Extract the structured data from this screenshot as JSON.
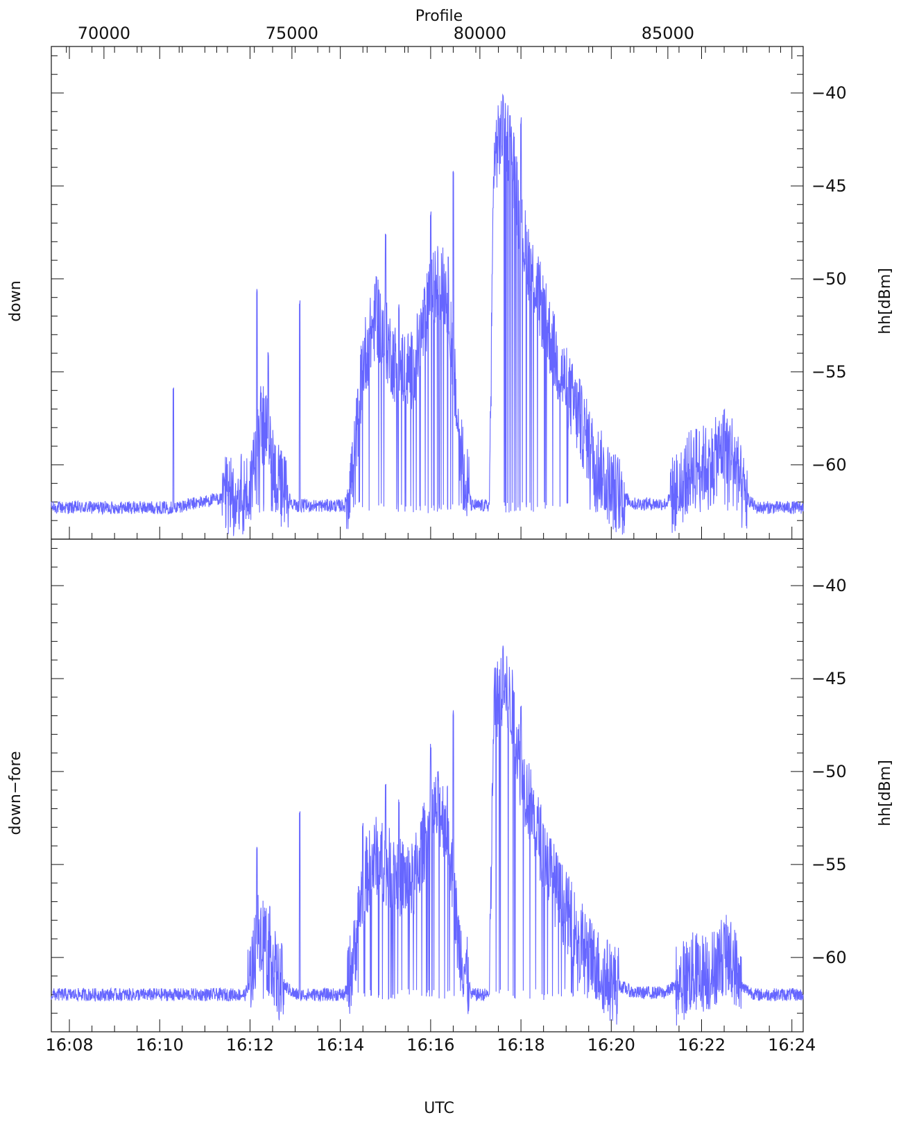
{
  "chart_data": {
    "type": "line",
    "top_axis": {
      "label": "Profile",
      "ticks": [
        "70000",
        "75000",
        "80000",
        "85000"
      ],
      "values": [
        70000,
        75000,
        80000,
        85000
      ],
      "range": [
        68600,
        88600
      ]
    },
    "x_axis": {
      "label": "UTC",
      "unit": "minutes since 16:00",
      "range": [
        7.6,
        24.25
      ],
      "ticks": [
        "16:08",
        "16:10",
        "16:12",
        "16:14",
        "16:16",
        "16:18",
        "16:20",
        "16:22",
        "16:24"
      ],
      "tick_values": [
        8,
        10,
        12,
        14,
        16,
        18,
        20,
        22,
        24
      ]
    },
    "line_color": "#6666ff",
    "panels": [
      {
        "name": "down",
        "y_label": "hh[dBm]",
        "ylim": [
          -64,
          -37.5
        ],
        "yticks": [
          -40,
          -45,
          -50,
          -55,
          -60
        ],
        "ytick_labels": [
          "−40",
          "−45",
          "−50",
          "−55",
          "−60"
        ],
        "baseline": -62.3,
        "envelope": [
          [
            7.6,
            -62.3
          ],
          [
            10.3,
            -62.3
          ],
          [
            12.0,
            -61.5
          ],
          [
            12.2,
            -57.5
          ],
          [
            12.4,
            -58.5
          ],
          [
            12.6,
            -61.0
          ],
          [
            13.0,
            -62.2
          ],
          [
            14.1,
            -62.2
          ],
          [
            14.3,
            -60.0
          ],
          [
            14.5,
            -54.5
          ],
          [
            14.8,
            -52.0
          ],
          [
            15.2,
            -54.5
          ],
          [
            15.6,
            -55.0
          ],
          [
            16.0,
            -51.0
          ],
          [
            16.2,
            -50.0
          ],
          [
            16.4,
            -51.0
          ],
          [
            16.6,
            -58.0
          ],
          [
            16.9,
            -62.2
          ],
          [
            17.3,
            -62.2
          ],
          [
            17.4,
            -43.5
          ],
          [
            17.6,
            -42.0
          ],
          [
            17.8,
            -43.0
          ],
          [
            18.0,
            -47.5
          ],
          [
            18.4,
            -51.0
          ],
          [
            18.8,
            -54.5
          ],
          [
            19.2,
            -57.0
          ],
          [
            19.6,
            -59.5
          ],
          [
            20.0,
            -61.3
          ],
          [
            20.5,
            -62.1
          ],
          [
            21.2,
            -62.1
          ],
          [
            21.6,
            -61.0
          ],
          [
            21.8,
            -60.0
          ],
          [
            22.2,
            -60.0
          ],
          [
            22.5,
            -59.0
          ],
          [
            22.7,
            -59.3
          ],
          [
            22.9,
            -61.5
          ],
          [
            23.2,
            -62.3
          ],
          [
            24.25,
            -62.3
          ]
        ],
        "spikes": [
          [
            10.3,
            -56.0
          ],
          [
            12.15,
            -50.6
          ],
          [
            12.4,
            -54.0
          ],
          [
            13.1,
            -51.3
          ],
          [
            14.8,
            -50.0
          ],
          [
            15.0,
            -47.5
          ],
          [
            15.3,
            -51.5
          ],
          [
            16.0,
            -46.5
          ],
          [
            16.5,
            -44.3
          ],
          [
            17.6,
            -40.3
          ],
          [
            18.0,
            -41.5
          ],
          [
            19.3,
            -55.5
          ],
          [
            22.5,
            -57.0
          ]
        ]
      },
      {
        "name": "down−fore",
        "y_label": "hh[dBm]",
        "ylim": [
          -64,
          -37.5
        ],
        "yticks": [
          -40,
          -45,
          -50,
          -55,
          -60
        ],
        "ytick_labels": [
          "−40",
          "−45",
          "−50",
          "−55",
          "−60"
        ],
        "baseline": -62.0,
        "envelope": [
          [
            7.6,
            -62.0
          ],
          [
            11.9,
            -62.0
          ],
          [
            12.0,
            -61.0
          ],
          [
            12.2,
            -58.5
          ],
          [
            12.4,
            -59.0
          ],
          [
            12.6,
            -61.2
          ],
          [
            13.0,
            -62.0
          ],
          [
            14.1,
            -62.0
          ],
          [
            14.3,
            -60.0
          ],
          [
            14.5,
            -56.0
          ],
          [
            14.8,
            -54.5
          ],
          [
            15.2,
            -55.5
          ],
          [
            15.6,
            -56.0
          ],
          [
            16.0,
            -52.5
          ],
          [
            16.2,
            -52.0
          ],
          [
            16.4,
            -53.0
          ],
          [
            16.6,
            -59.0
          ],
          [
            16.9,
            -62.0
          ],
          [
            17.3,
            -62.0
          ],
          [
            17.4,
            -46.5
          ],
          [
            17.6,
            -45.5
          ],
          [
            17.8,
            -46.5
          ],
          [
            18.0,
            -50.0
          ],
          [
            18.4,
            -53.5
          ],
          [
            18.8,
            -56.5
          ],
          [
            19.2,
            -58.5
          ],
          [
            19.6,
            -60.3
          ],
          [
            20.0,
            -61.3
          ],
          [
            20.5,
            -61.9
          ],
          [
            21.2,
            -61.9
          ],
          [
            21.6,
            -61.2
          ],
          [
            21.8,
            -60.8
          ],
          [
            22.2,
            -60.8
          ],
          [
            22.5,
            -59.8
          ],
          [
            22.7,
            -60.2
          ],
          [
            22.9,
            -61.6
          ],
          [
            23.2,
            -62.0
          ],
          [
            24.25,
            -62.0
          ]
        ],
        "spikes": [
          [
            12.15,
            -54.0
          ],
          [
            13.1,
            -52.3
          ],
          [
            14.5,
            -52.8
          ],
          [
            15.0,
            -50.8
          ],
          [
            15.3,
            -51.7
          ],
          [
            16.0,
            -48.7
          ],
          [
            16.5,
            -46.8
          ],
          [
            17.6,
            -43.3
          ],
          [
            18.0,
            -46.5
          ],
          [
            19.3,
            -61.3
          ],
          [
            22.5,
            -58.3
          ]
        ]
      }
    ]
  }
}
